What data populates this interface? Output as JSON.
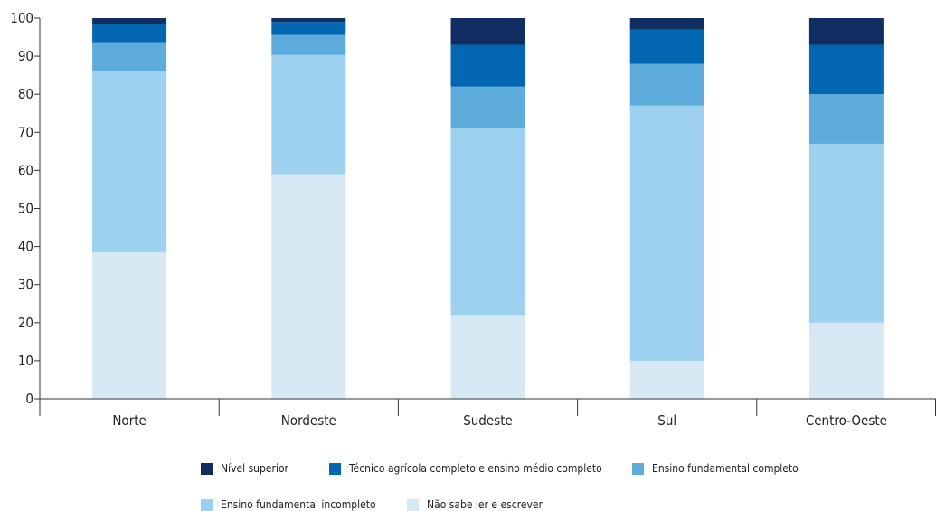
{
  "chart_data": {
    "type": "bar",
    "stacked": true,
    "title": "",
    "xlabel": "",
    "ylabel": "",
    "ylim": [
      0,
      100
    ],
    "yticks": [
      0,
      10,
      20,
      30,
      40,
      50,
      60,
      70,
      80,
      90,
      100
    ],
    "grid": false,
    "legend_position": "bottom",
    "categories": [
      "Norte",
      "Nordeste",
      "Sudeste",
      "Sul",
      "Centro-Oeste"
    ],
    "series": [
      {
        "name": "Não sabe ler e escrever",
        "color": "#d6e8f4",
        "values": [
          38.5,
          59,
          22,
          10,
          20
        ]
      },
      {
        "name": "Ensino fundamental incompleto",
        "color": "#9dd1ef",
        "values": [
          47.5,
          31.3,
          49,
          67,
          47
        ]
      },
      {
        "name": "Ensino fundamental completo",
        "color": "#5eacdb",
        "values": [
          7.7,
          5.3,
          11,
          11,
          13
        ]
      },
      {
        "name": "Técnico agrícola completo e ensino médio completo",
        "color": "#0366b0",
        "values": [
          4.8,
          3.4,
          11,
          9,
          13
        ]
      },
      {
        "name": "Nível superior",
        "color": "#112e63",
        "values": [
          1.5,
          1.0,
          7,
          3,
          7
        ]
      }
    ],
    "legend_order": [
      "Nível superior",
      "Técnico agrícola completo e ensino médio completo",
      "Ensino fundamental completo",
      "Ensino fundamental incompleto",
      "Não sabe ler e escrever"
    ]
  }
}
